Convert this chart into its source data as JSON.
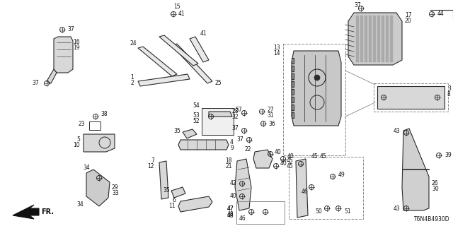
{
  "background_color": "#ffffff",
  "diagram_code": "T6N4B4930D",
  "line_color": "#2a2a2a",
  "label_color": "#111111"
}
